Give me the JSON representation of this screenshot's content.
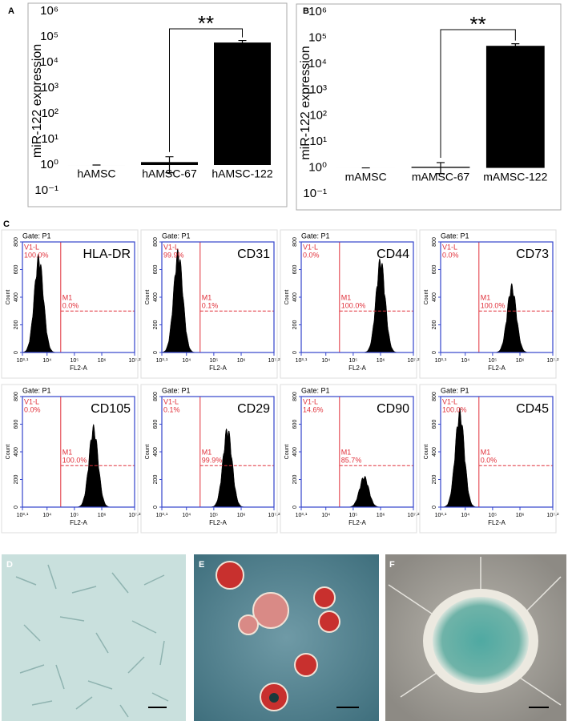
{
  "panel_labels": [
    "A",
    "B",
    "C",
    "D",
    "E",
    "F"
  ],
  "chart_data": [
    {
      "type": "bar",
      "y_label": "miR-122 expression",
      "categories": [
        "hAMSC",
        "hAMSC-67",
        "hAMSC-122"
      ],
      "values": [
        1,
        1.3,
        60000
      ],
      "errors": [
        0,
        0.8,
        12000
      ],
      "color": "#000000",
      "log_scale": true,
      "ylim": [
        0.1,
        1000000
      ],
      "yticks": [
        {
          "value": 0.1,
          "label": "10⁻¹"
        },
        {
          "value": 1,
          "label": "10⁰"
        },
        {
          "value": 10,
          "label": "10¹"
        },
        {
          "value": 100,
          "label": "10²"
        },
        {
          "value": 1000,
          "label": "10³"
        },
        {
          "value": 10000,
          "label": "10⁴"
        },
        {
          "value": 100000,
          "label": "10⁵"
        },
        {
          "value": 1000000,
          "label": "10⁶"
        }
      ],
      "significance": "**"
    },
    {
      "type": "bar",
      "y_label": "miR-122 expression",
      "categories": [
        "mAMSC",
        "mAMSC-67",
        "mAMSC-122"
      ],
      "values": [
        1,
        1.1,
        50000
      ],
      "errors": [
        0,
        0.5,
        10000
      ],
      "color": "#000000",
      "log_scale": true,
      "ylim": [
        0.1,
        1000000
      ],
      "yticks": [
        {
          "value": 0.1,
          "label": "10⁻¹"
        },
        {
          "value": 1,
          "label": "10⁰"
        },
        {
          "value": 10,
          "label": "10¹"
        },
        {
          "value": 100,
          "label": "10²"
        },
        {
          "value": 1000,
          "label": "10³"
        },
        {
          "value": 10000,
          "label": "10⁴"
        },
        {
          "value": 100000,
          "label": "10⁵"
        },
        {
          "value": 1000000,
          "label": "10⁶"
        }
      ],
      "significance": "**"
    }
  ],
  "flow_axes": {
    "y_label": "Count",
    "x_label": "FL2-A",
    "ylim": [
      0,
      800
    ],
    "yticks": [
      0,
      200,
      400,
      600,
      800
    ],
    "xlim": [
      3.1,
      7.2
    ],
    "xticks": [
      {
        "value": 3.1,
        "label": "10³·¹"
      },
      {
        "value": 4,
        "label": "10⁴"
      },
      {
        "value": 5,
        "label": "10⁵"
      },
      {
        "value": 6,
        "label": "10⁶"
      },
      {
        "value": 7.2,
        "label": "10⁷·²"
      }
    ]
  },
  "flow_panels": [
    {
      "gate": "Gate: P1",
      "marker": "HLA-DR",
      "v1": "V1-L",
      "v1_pct": "100.0%",
      "m1": "M1",
      "m1_pct": "0.0%",
      "peak": 3.7,
      "height": 720
    },
    {
      "gate": "Gate: P1",
      "marker": "CD31",
      "v1": "V1-L",
      "v1_pct": "99.9%",
      "m1": "M1",
      "m1_pct": "0.1%",
      "peak": 3.7,
      "height": 760
    },
    {
      "gate": "Gate: P1",
      "marker": "CD44",
      "v1": "V1-L",
      "v1_pct": "0.0%",
      "m1": "M1",
      "m1_pct": "100.0%",
      "peak": 6.0,
      "height": 700
    },
    {
      "gate": "Gate: P1",
      "marker": "CD73",
      "v1": "V1-L",
      "v1_pct": "0.0%",
      "m1": "M1",
      "m1_pct": "100.0%",
      "peak": 5.7,
      "height": 500
    },
    {
      "gate": "Gate: P1",
      "marker": "CD105",
      "v1": "V1-L",
      "v1_pct": "0.0%",
      "m1": "M1",
      "m1_pct": "100.0%",
      "peak": 5.7,
      "height": 600
    },
    {
      "gate": "Gate: P1",
      "marker": "CD29",
      "v1": "V1-L",
      "v1_pct": "0.1%",
      "m1": "M1",
      "m1_pct": "99.9%",
      "peak": 5.5,
      "height": 590
    },
    {
      "gate": "Gate: P1",
      "marker": "CD90",
      "v1": "V1-L",
      "v1_pct": "14.6%",
      "m1": "M1",
      "m1_pct": "85.7%",
      "peak": 5.4,
      "height": 230
    },
    {
      "gate": "Gate: P1",
      "marker": "CD45",
      "v1": "V1-L",
      "v1_pct": "100.0%",
      "m1": "M1",
      "m1_pct": "0.0%",
      "peak": 3.8,
      "height": 720
    }
  ]
}
